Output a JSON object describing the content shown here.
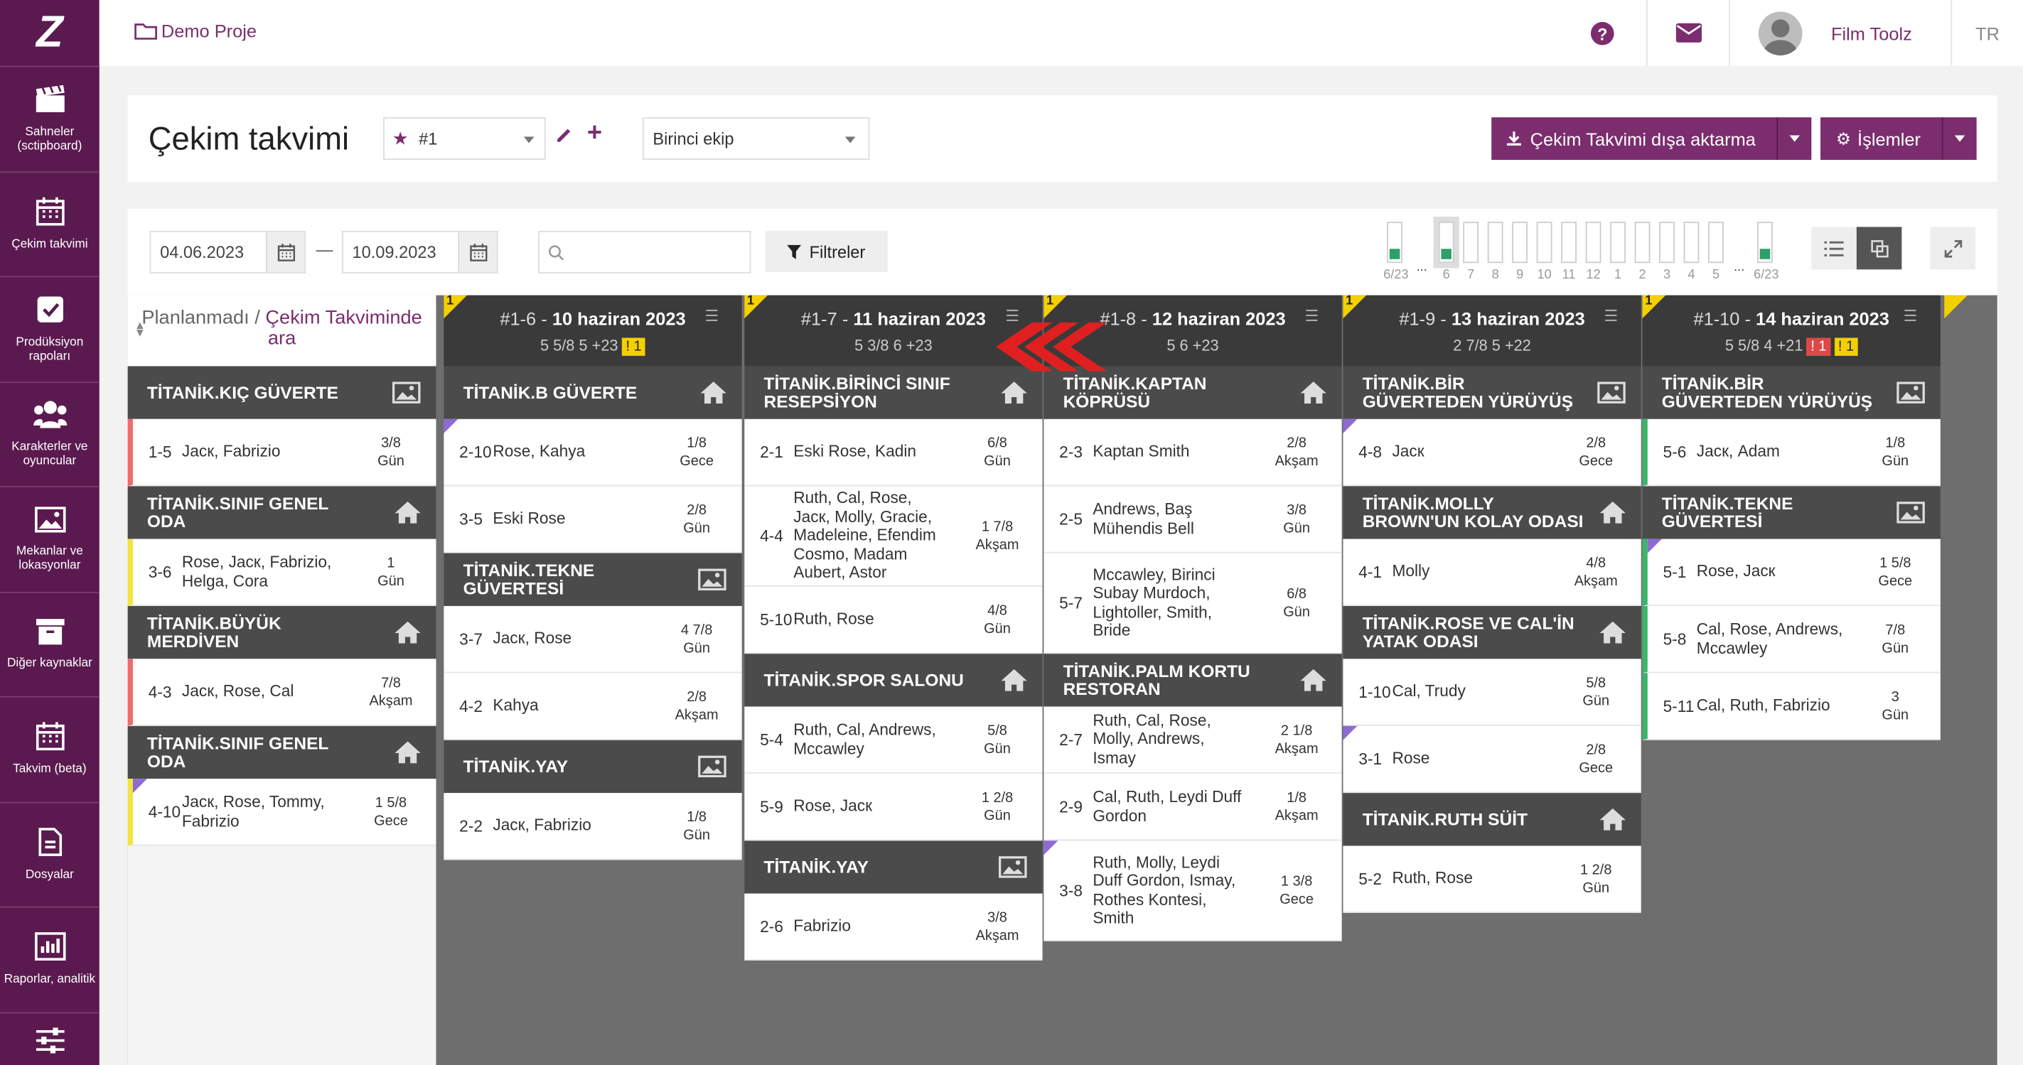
{
  "sidebar": {
    "logo": "Z",
    "items": [
      {
        "label": "Sahneler (sctipboard)",
        "icon": "clapperboard-icon"
      },
      {
        "label": "Çekim takvimi",
        "icon": "calendar-icon"
      },
      {
        "label": "Prodüksiyon rapoları",
        "icon": "checkbox-icon"
      },
      {
        "label": "Karakterler ve oyuncular",
        "icon": "people-icon"
      },
      {
        "label": "Mekanlar ve lokasyonlar",
        "icon": "image-icon"
      },
      {
        "label": "Diğer kaynaklar",
        "icon": "box-icon"
      },
      {
        "label": "Takvim (beta)",
        "icon": "calendar-grid-icon"
      },
      {
        "label": "Dosyalar",
        "icon": "document-icon"
      },
      {
        "label": "Raporlar, analitik",
        "icon": "chart-icon"
      },
      {
        "label": "",
        "icon": "sliders-icon"
      }
    ]
  },
  "topbar": {
    "project": "Demo Proje",
    "user": "Film Toolz",
    "lang": "TR"
  },
  "header": {
    "title": "Çekim takvimi",
    "schedule": "#1",
    "crew": "Birinci ekip",
    "export_label": "Çekim Takvimi dışa aktarma",
    "ops_label": "İşlemler"
  },
  "filters": {
    "date_from": "04.06.2023",
    "date_sep": "—",
    "date_to": "10.09.2023",
    "search_placeholder": "",
    "filters_label": "Filtreler"
  },
  "mini": {
    "labels": [
      "6/23",
      "...",
      "6",
      "7",
      "8",
      "9",
      "10",
      "11",
      "12",
      "1",
      "2",
      "3",
      "4",
      "5",
      "...",
      "6/23"
    ]
  },
  "unplanned": {
    "title1": "Planlanmadı / ",
    "title2": "Çekim Takviminde ara",
    "locations": [
      {
        "name": "TİTANİK.KIÇ GÜVERTE",
        "icon": "image",
        "scenes": [
          {
            "n": "1-5",
            "c": "Jacк, Fabrizio",
            "d1": "3/8",
            "d2": "Gün",
            "bar": "bl"
          }
        ]
      },
      {
        "name": "TİTANİK.SINIF GENEL ODA",
        "icon": "home",
        "scenes": [
          {
            "n": "3-6",
            "c": "Rose, Jacк, Fabrizio, Helga, Cora",
            "d1": "1",
            "d2": "Gün",
            "bar": "by"
          }
        ]
      },
      {
        "name": "TİTANİK.BÜYÜK MERDİVEN",
        "icon": "home",
        "scenes": [
          {
            "n": "4-3",
            "c": "Jacк, Rose, Cal",
            "d1": "7/8",
            "d2": "Akşam",
            "bar": "bl"
          }
        ]
      },
      {
        "name": "TİTANİK.SINIF GENEL ODA",
        "icon": "home",
        "scenes": [
          {
            "n": "4-10",
            "c": "Jacк, Rose, Tommy, Fabrizio",
            "d1": "1 5/8",
            "d2": "Gece",
            "bar": "by",
            "p": true
          }
        ]
      }
    ]
  },
  "days": [
    {
      "id": "#1-6",
      "date": "10 haziran 2023",
      "stats": "5 5/8   5   +23",
      "corner": "1",
      "badges": [
        {
          "t": "! 1",
          "r": false
        }
      ],
      "locations": [
        {
          "name": "TİTANİK.B GÜVERTE",
          "icon": "home",
          "scenes": [
            {
              "n": "2-10",
              "c": "Rose, Kahya",
              "d1": "1/8",
              "d2": "Gece",
              "p": true
            },
            {
              "n": "3-5",
              "c": "Eski Rose",
              "d1": "2/8",
              "d2": "Gün"
            }
          ]
        },
        {
          "name": "TİTANİK.TEKNE GÜVERTESİ",
          "icon": "image",
          "scenes": [
            {
              "n": "3-7",
              "c": "Jacк, Rose",
              "d1": "4 7/8",
              "d2": "Gün"
            },
            {
              "n": "4-2",
              "c": "Kahya",
              "d1": "2/8",
              "d2": "Akşam"
            }
          ]
        },
        {
          "name": "TİTANİK.YAY",
          "icon": "image",
          "scenes": [
            {
              "n": "2-2",
              "c": "Jacк, Fabrizio",
              "d1": "1/8",
              "d2": "Gün"
            }
          ]
        }
      ]
    },
    {
      "id": "#1-7",
      "date": "11 haziran 2023",
      "stats": "5 3/8   6   +23",
      "corner": "1",
      "badges": [],
      "locations": [
        {
          "name": "TİTANİK.BİRİNCİ SINIF RESEPSİYON",
          "icon": "home",
          "scenes": [
            {
              "n": "2-1",
              "c": "Eski Rose, Kadin",
              "d1": "6/8",
              "d2": "Gün"
            },
            {
              "n": "4-4",
              "c": "Ruth, Cal, Rose, Jacк, Molly, Gracie, Madeleine, Efendim Cosmo, Madam Aubert, Astor",
              "d1": "1 7/8",
              "d2": "Akşam",
              "tall": true
            },
            {
              "n": "5-10",
              "c": "Ruth, Rose",
              "d1": "4/8",
              "d2": "Gün"
            }
          ]
        },
        {
          "name": "TİTANİK.SPOR SALONU",
          "icon": "home",
          "scenes": [
            {
              "n": "5-4",
              "c": "Ruth, Cal, Andrews, Mccawley",
              "d1": "5/8",
              "d2": "Gün"
            },
            {
              "n": "5-9",
              "c": "Rose, Jacк",
              "d1": "1 2/8",
              "d2": "Gün"
            }
          ]
        },
        {
          "name": "TİTANİK.YAY",
          "icon": "image",
          "scenes": [
            {
              "n": "2-6",
              "c": "Fabrizio",
              "d1": "3/8",
              "d2": "Akşam"
            }
          ]
        }
      ]
    },
    {
      "id": "#1-8",
      "date": "12 haziran 2023",
      "stats": "5   6   +23",
      "corner": "1",
      "badges": [],
      "locations": [
        {
          "name": "TİTANİK.KAPTAN KÖPRÜSÜ",
          "icon": "home",
          "scenes": [
            {
              "n": "2-3",
              "c": "Kaptan Smith",
              "d1": "2/8",
              "d2": "Akşam"
            },
            {
              "n": "2-5",
              "c": "Andrews, Baş Mühendis Bell",
              "d1": "3/8",
              "d2": "Gün"
            },
            {
              "n": "5-7",
              "c": "Mccawley, Birinci Subay Murdoch, Lightoller, Smith, Bride",
              "d1": "6/8",
              "d2": "Gün",
              "tall": true
            }
          ]
        },
        {
          "name": "TİTANİK.PALM KORTU RESTORAN",
          "icon": "home",
          "scenes": [
            {
              "n": "2-7",
              "c": "Ruth, Cal, Rose, Molly, Andrews, Ismay",
              "d1": "2 1/8",
              "d2": "Akşam"
            },
            {
              "n": "2-9",
              "c": "Cal, Ruth, Leydi Duff Gordon",
              "d1": "1/8",
              "d2": "Akşam"
            },
            {
              "n": "3-8",
              "c": "Ruth, Molly, Leydi Duff Gordon, Ismay, Rothes Kontesi, Smith",
              "d1": "1 3/8",
              "d2": "Gece",
              "p": true,
              "tall": true
            }
          ]
        }
      ]
    },
    {
      "id": "#1-9",
      "date": "13 haziran 2023",
      "stats": "2 7/8   5   +22",
      "corner": "1",
      "badges": [],
      "locations": [
        {
          "name": "TİTANİK.BİR GÜVERTEDEN YÜRÜYÜŞ",
          "icon": "image",
          "scenes": [
            {
              "n": "4-8",
              "c": "Jacк",
              "d1": "2/8",
              "d2": "Gece",
              "p": true
            }
          ]
        },
        {
          "name": "TİTANİK.MOLLY BROWN'UN KOLAY ODASI",
          "icon": "home",
          "scenes": [
            {
              "n": "4-1",
              "c": "Molly",
              "d1": "4/8",
              "d2": "Akşam"
            }
          ]
        },
        {
          "name": "TİTANİK.ROSE VE CAL'İN YATAK ODASI",
          "icon": "home",
          "scenes": [
            {
              "n": "1-10",
              "c": "Cal, Trudy",
              "d1": "5/8",
              "d2": "Gün"
            },
            {
              "n": "3-1",
              "c": "Rose",
              "d1": "2/8",
              "d2": "Gece",
              "p": true
            }
          ]
        },
        {
          "name": "TİTANİK.RUTH SÜİT",
          "icon": "home",
          "scenes": [
            {
              "n": "5-2",
              "c": "Ruth, Rose",
              "d1": "1 2/8",
              "d2": "Gün"
            }
          ]
        }
      ]
    },
    {
      "id": "#1-10",
      "date": "14 haziran 2023",
      "stats": "5 5/8   4   +21",
      "corner": "1",
      "badges": [
        {
          "t": "! 1",
          "r": true
        },
        {
          "t": "! 1",
          "r": false
        }
      ],
      "locations": [
        {
          "name": "TİTANİK.BİR GÜVERTEDEN YÜRÜYÜŞ",
          "icon": "image",
          "scenes": [
            {
              "n": "5-6",
              "c": "Jacк, Adam",
              "d1": "1/8",
              "d2": "Gün",
              "bar": "bg"
            }
          ]
        },
        {
          "name": "TİTANİK.TEKNE GÜVERTESİ",
          "icon": "image",
          "scenes": [
            {
              "n": "5-1",
              "c": "Rose, Jacк",
              "d1": "1 5/8",
              "d2": "Gece",
              "bar": "bg",
              "p": true
            },
            {
              "n": "5-8",
              "c": "Cal, Rose, Andrews, Mccawley",
              "d1": "7/8",
              "d2": "Gün",
              "bar": "bg"
            },
            {
              "n": "5-11",
              "c": "Cal, Ruth, Fabrizio",
              "d1": "3",
              "d2": "Gün",
              "bar": "bg"
            }
          ]
        }
      ]
    }
  ]
}
